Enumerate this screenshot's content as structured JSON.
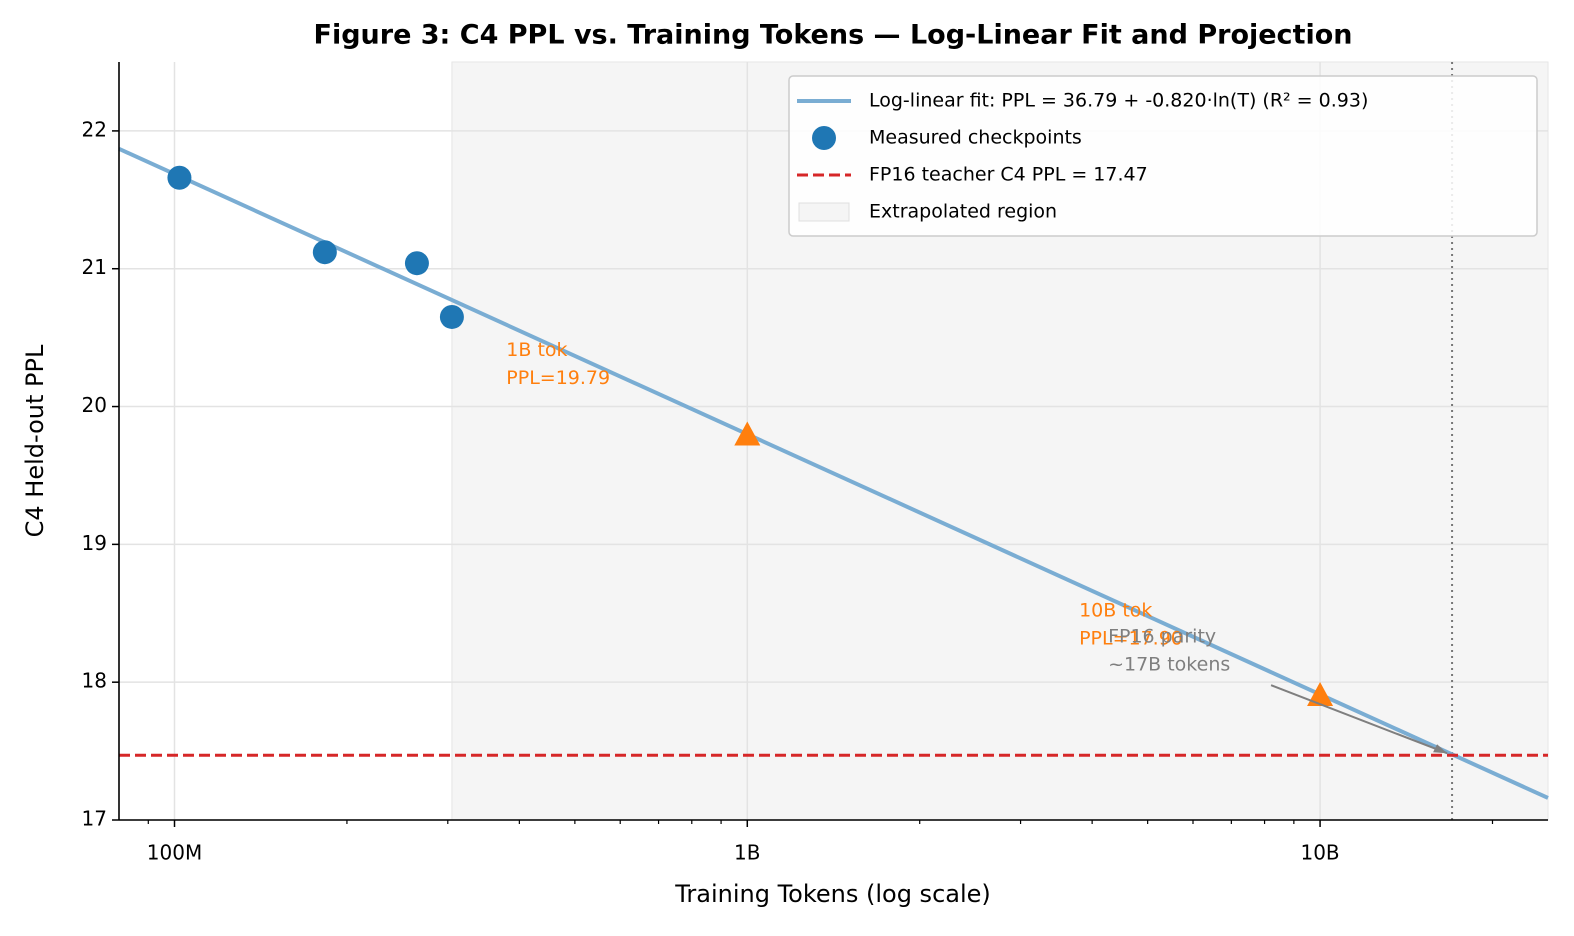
{
  "chart_data": {
    "type": "scatter",
    "title": "Figure 3: C4 PPL vs. Training Tokens — Log-Linear Fit and Projection",
    "xlabel": "Training Tokens (log scale)",
    "ylabel": "C4 Held-out PPL",
    "xscale": "log",
    "xlim": [
      80000000,
      25000000000
    ],
    "ylim": [
      17,
      22.5
    ],
    "xticks": [
      {
        "value": 100000000,
        "label": "100M"
      },
      {
        "value": 1000000000,
        "label": "1B"
      },
      {
        "value": 10000000000,
        "label": "10B"
      }
    ],
    "xminorticks": [
      90000000,
      200000000,
      300000000,
      400000000,
      500000000,
      600000000,
      700000000,
      800000000,
      900000000,
      2000000000,
      3000000000,
      4000000000,
      5000000000,
      6000000000,
      7000000000,
      8000000000,
      9000000000,
      20000000000
    ],
    "yticks": [
      17,
      18,
      19,
      20,
      21,
      22
    ],
    "grid": true,
    "legend": "upper right",
    "series": [
      {
        "name": "Log-linear fit: PPL = 36.79 + -0.820·ln(T)  (R² = 0.93)",
        "kind": "line",
        "color": "#7aadd3",
        "x": [
          80000000,
          25000000000
        ],
        "values": [
          21.87,
          17.16
        ]
      },
      {
        "name": "Measured checkpoints",
        "kind": "points",
        "color": "#1f77b4",
        "x": [
          102000000,
          183000000,
          265000000,
          305000000
        ],
        "values": [
          21.66,
          21.12,
          21.04,
          20.65
        ]
      },
      {
        "name": "FP16 teacher C4 PPL = 17.47",
        "kind": "hline",
        "color": "#d62728",
        "values": [
          17.47
        ]
      },
      {
        "name": "Extrapolated region",
        "kind": "span",
        "color": "#f5f5f5",
        "x": [
          305000000,
          25000000000
        ]
      }
    ],
    "projections": {
      "color": "#ff7f0e",
      "x": [
        1000000000,
        10000000000
      ],
      "values": [
        19.79,
        17.9
      ],
      "labels": [
        [
          "1B tok",
          "PPL=19.79"
        ],
        [
          "10B tok",
          "PPL=17.90"
        ]
      ]
    },
    "parity": {
      "x": 17000000000,
      "y": 17.47,
      "text": [
        "FP16 parity",
        "~17B tokens"
      ],
      "color": "#7f7f7f"
    }
  }
}
